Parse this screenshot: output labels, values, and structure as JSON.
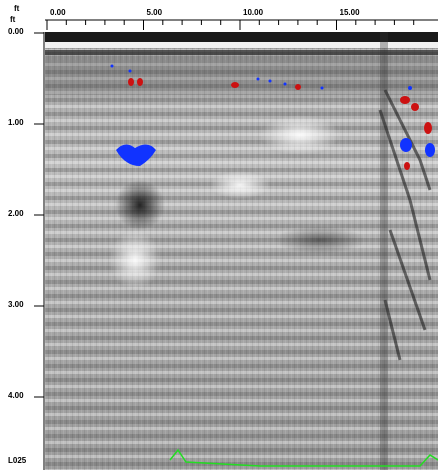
{
  "axes": {
    "x": {
      "unit": "ft",
      "ticks": [
        "0.00",
        "5.00",
        "10.00",
        "15.00"
      ]
    },
    "y": {
      "unit": "ft",
      "ticks": [
        "0.00",
        "1.00",
        "2.00",
        "3.00",
        "4.00"
      ]
    }
  },
  "line_id": "L025"
}
